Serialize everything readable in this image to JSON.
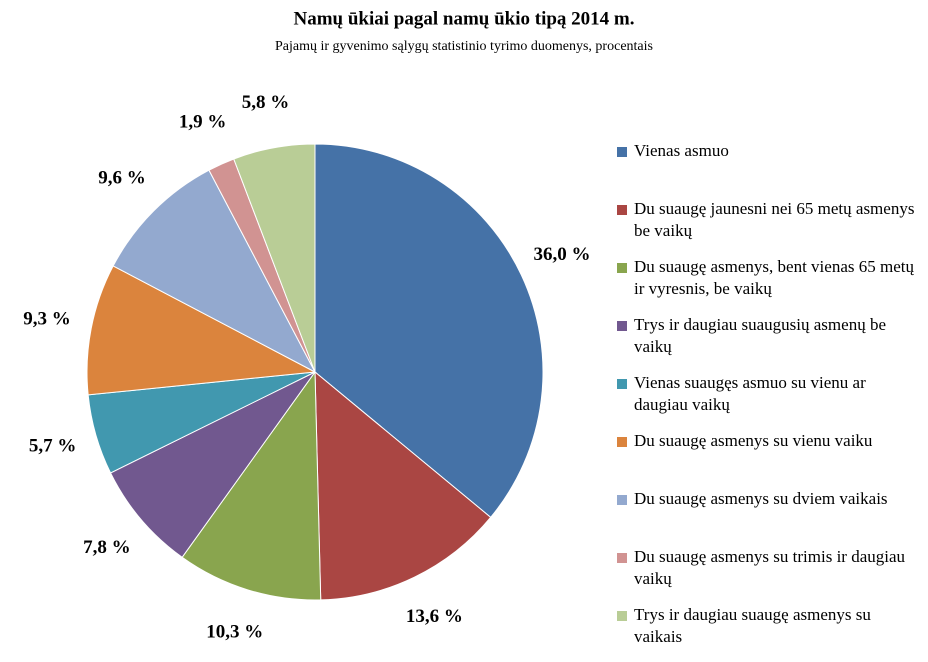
{
  "chart_data": {
    "type": "pie",
    "title": "Namų ūkiai pagal namų ūkio tipą 2014 m.",
    "subtitle": "Pajamų ir gyvenimo sąlygų statistinio tyrimo duomenys, procentais",
    "categories": [
      "Vienas asmuo",
      "Du suaugę jaunesni nei 65 metų asmenys be vaikų",
      "Du suaugę asmenys, bent vienas 65 metų ir vyresnis, be vaikų",
      "Trys ir daugiau suaugusių asmenų be vaikų",
      "Vienas suaugęs asmuo su vienu ar daugiau vaikų",
      "Du suaugę asmenys su vienu vaiku",
      "Du suaugę asmenys su dviem vaikais",
      "Du suaugę asmenys su trimis ir daugiau vaikų",
      "Trys ir daugiau suaugę asmenys su vaikais"
    ],
    "values": [
      36.0,
      13.6,
      10.3,
      7.8,
      5.7,
      9.3,
      9.6,
      1.9,
      5.8
    ],
    "value_labels": [
      "36,0 %",
      "13,6 %",
      "10,3 %",
      "7,8 %",
      "5,7 %",
      "9,3 %",
      "9,6 %",
      "1,9 %",
      "5,8 %"
    ],
    "colors": [
      "#4572a7",
      "#aa4643",
      "#89a54e",
      "#71588f",
      "#4198af",
      "#db843d",
      "#93a9cf",
      "#d19392",
      "#b9cd96"
    ],
    "legend": "right"
  }
}
